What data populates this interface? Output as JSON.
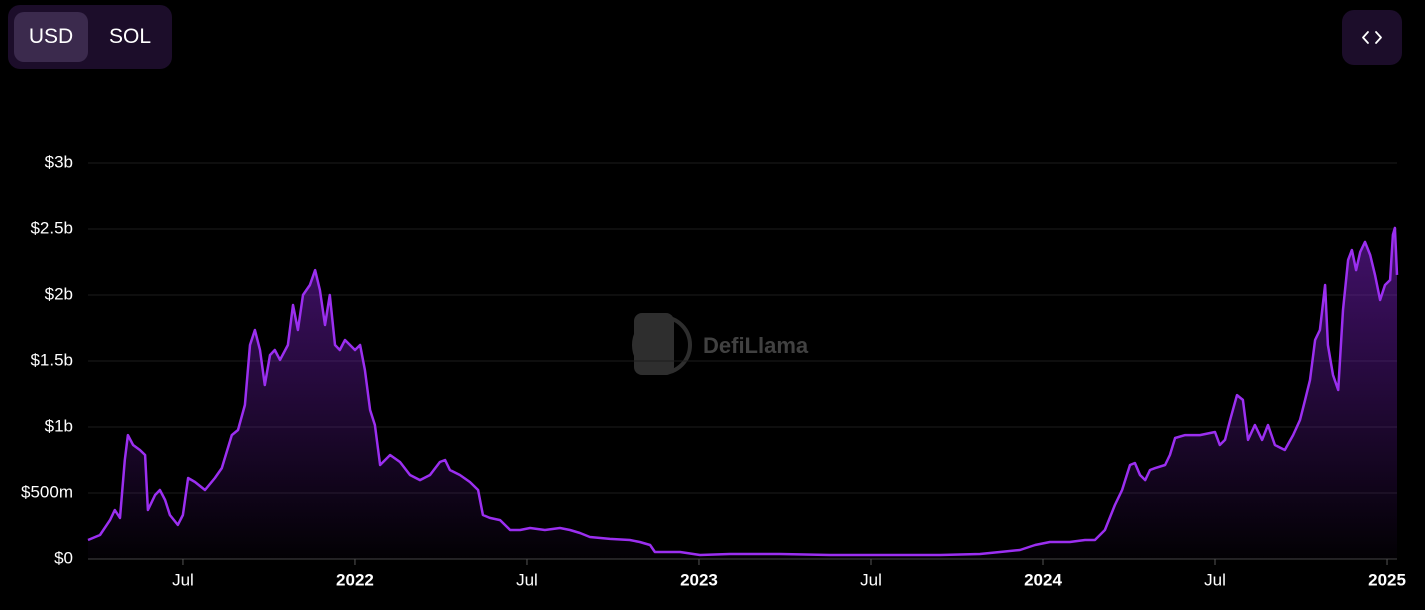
{
  "ui": {
    "currency_options": [
      "USD",
      "SOL"
    ]
  },
  "chart_data": {
    "type": "area",
    "watermark": "DefiLlama",
    "color": "#9b2ff0",
    "grid": true,
    "xlim": [
      2021.224,
      2025.029
    ],
    "ylim": [
      0,
      3000000000.0
    ],
    "xticks": [
      {
        "value": 2021.5,
        "label": "Jul"
      },
      2022,
      {
        "value": 2022.5,
        "label": "Jul"
      },
      2023,
      {
        "value": 2023.5,
        "label": "Jul"
      },
      2024,
      {
        "value": 2024.5,
        "label": "Jul"
      },
      2025
    ],
    "yticks": [
      {
        "value": 0,
        "label": "$0"
      },
      {
        "value": 500000000,
        "label": "$500m"
      },
      {
        "value": 1000000000,
        "label": "$1b"
      },
      {
        "value": 1500000000,
        "label": "$1.5b"
      },
      {
        "value": 2000000000,
        "label": "$2b"
      },
      {
        "value": 2500000000,
        "label": "$2.5b"
      },
      {
        "value": 3000000000,
        "label": "$3b"
      }
    ],
    "x": [
      2021.224,
      2021.259,
      2021.288,
      2021.302,
      2021.317,
      2021.331,
      2021.34,
      2021.355,
      2021.375,
      2021.39,
      2021.398,
      2021.419,
      2021.433,
      2021.448,
      2021.462,
      2021.485,
      2021.5,
      2021.515,
      2021.535,
      2021.564,
      2021.593,
      2021.613,
      2021.642,
      2021.66,
      2021.68,
      2021.695,
      2021.709,
      2021.724,
      2021.738,
      2021.753,
      2021.767,
      2021.782,
      2021.805,
      2021.82,
      2021.834,
      2021.849,
      2021.869,
      2021.884,
      2021.898,
      2021.913,
      2021.927,
      2021.942,
      2021.956,
      2021.971,
      2022.0,
      2022.015,
      2022.029,
      2022.044,
      2022.058,
      2022.073,
      2022.102,
      2022.131,
      2022.16,
      2022.189,
      2022.218,
      2022.247,
      2022.262,
      2022.276,
      2022.305,
      2022.334,
      2022.358,
      2022.372,
      2022.392,
      2022.422,
      2022.451,
      2022.48,
      2022.509,
      2022.552,
      2022.596,
      2022.625,
      2022.654,
      2022.683,
      2022.741,
      2022.799,
      2022.828,
      2022.858,
      2022.872,
      2022.945,
      2023.003,
      2023.09,
      2023.235,
      2023.381,
      2023.526,
      2023.701,
      2023.817,
      2023.875,
      2023.933,
      2023.977,
      2024.02,
      2024.078,
      2024.122,
      2024.151,
      2024.18,
      2024.209,
      2024.23,
      2024.253,
      2024.267,
      2024.282,
      2024.297,
      2024.311,
      2024.326,
      2024.355,
      2024.369,
      2024.384,
      2024.413,
      2024.456,
      2024.5,
      2024.514,
      2024.529,
      2024.544,
      2024.564,
      2024.581,
      2024.596,
      2024.616,
      2024.637,
      2024.654,
      2024.674,
      2024.703,
      2024.727,
      2024.747,
      2024.762,
      2024.776,
      2024.791,
      2024.805,
      2024.82,
      2024.828,
      2024.843,
      2024.858,
      2024.872,
      2024.887,
      2024.898,
      2024.91,
      2024.922,
      2024.936,
      2024.951,
      2024.965,
      2024.98,
      2024.994,
      2025.009,
      2025.017,
      2025.023,
      2025.029
    ],
    "values": [
      144000000.0,
      182000000.0,
      295000000.0,
      371000000.0,
      311000000.0,
      750000000.0,
      939000000.0,
      864000000.0,
      826000000.0,
      788000000.0,
      371000000.0,
      485000000.0,
      523000000.0,
      447000000.0,
      333000000.0,
      258000000.0,
      333000000.0,
      614000000.0,
      583000000.0,
      523000000.0,
      614000000.0,
      689000000.0,
      939000000.0,
      977000000.0,
      1167000000.0,
      1621000000.0,
      1735000000.0,
      1583000000.0,
      1318000000.0,
      1545000000.0,
      1583000000.0,
      1508000000.0,
      1621000000.0,
      1924000000.0,
      1735000000.0,
      2000000000.0,
      2076000000.0,
      2189000000.0,
      2038000000.0,
      1773000000.0,
      2000000000.0,
      1621000000.0,
      1583000000.0,
      1659000000.0,
      1583000000.0,
      1621000000.0,
      1432000000.0,
      1129000000.0,
      1015000000.0,
      712000000.0,
      788000000.0,
      735000000.0,
      636000000.0,
      598000000.0,
      636000000.0,
      735000000.0,
      750000000.0,
      674000000.0,
      636000000.0,
      583000000.0,
      523000000.0,
      333000000.0,
      311000000.0,
      295000000.0,
      220000000.0,
      220000000.0,
      235000000.0,
      220000000.0,
      235000000.0,
      220000000.0,
      197000000.0,
      167000000.0,
      152000000.0,
      144000000.0,
      129000000.0,
      106000000.0,
      53000000.0,
      53000000.0,
      30000000.0,
      38000000.0,
      38000000.0,
      30000000.0,
      30000000.0,
      30000000.0,
      38000000.0,
      53000000.0,
      68000000.0,
      106000000.0,
      129000000.0,
      129000000.0,
      144000000.0,
      144000000.0,
      220000000.0,
      409000000.0,
      523000000.0,
      712000000.0,
      727000000.0,
      636000000.0,
      598000000.0,
      674000000.0,
      689000000.0,
      712000000.0,
      788000000.0,
      917000000.0,
      939000000.0,
      939000000.0,
      962000000.0,
      864000000.0,
      902000000.0,
      1053000000.0,
      1242000000.0,
      1205000000.0,
      902000000.0,
      1015000000.0,
      902000000.0,
      1015000000.0,
      864000000.0,
      826000000.0,
      939000000.0,
      1053000000.0,
      1205000000.0,
      1356000000.0,
      1659000000.0,
      1735000000.0,
      2076000000.0,
      1621000000.0,
      1394000000.0,
      1280000000.0,
      1886000000.0,
      2265000000.0,
      2341000000.0,
      2189000000.0,
      2326000000.0,
      2402000000.0,
      2303000000.0,
      2152000000.0,
      1962000000.0,
      2076000000.0,
      2114000000.0,
      2455000000.0,
      2508000000.0,
      2152000000.0
    ]
  }
}
